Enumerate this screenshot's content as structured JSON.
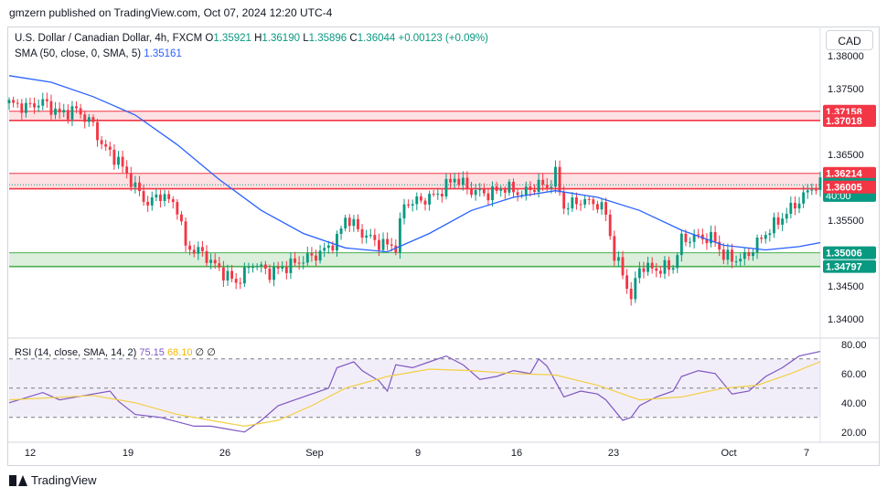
{
  "header": {
    "publisher": "gmzern published on TradingView.com, Oct 07, 2024 12:20 UTC-4"
  },
  "legend": {
    "symbol": "U.S. Dollar / Canadian Dollar, 4h, FXCM",
    "o_key": "O",
    "o_val": "1.35921",
    "h_key": "H",
    "h_val": "1.36190",
    "l_key": "L",
    "l_val": "1.35896",
    "c_key": "C",
    "c_val": "1.36044",
    "change": "+0.00123 (+0.09%)",
    "sma_label": "SMA (50, close, 0, SMA, 5)",
    "sma_value": "1.35161"
  },
  "currency_button": "CAD",
  "rsi_legend": {
    "label": "RSI (14, close, SMA, 14, 2)",
    "rsi_value": "75.15",
    "sma_value": "68.10",
    "v3": "∅",
    "v4": "∅"
  },
  "footer": {
    "brand": "TradingView"
  },
  "colors": {
    "up": "#089981",
    "down": "#f23645",
    "sma": "#2962ff",
    "rsi": "#7e57c2",
    "rsi_sma": "#f2cf45",
    "resistance": "#f23645",
    "support": "#4caf50",
    "text": "#131722"
  },
  "chart_data": [
    {
      "type": "candlestick",
      "title": "U.S. Dollar / Canadian Dollar, 4h, FXCM",
      "ylim": [
        1.3375,
        1.3835
      ],
      "y_ticks": [
        "1.38000",
        "1.37500",
        "1.37000",
        "1.36500",
        "1.36000",
        "1.35500",
        "1.35000",
        "1.34500",
        "1.34000"
      ],
      "x_ticks": [
        "12",
        "19",
        "26",
        "Sep",
        "9",
        "16",
        "23",
        "Oct",
        "7"
      ],
      "zones": [
        {
          "top": 1.37158,
          "bottom": 1.37018,
          "kind": "resistance"
        },
        {
          "top": 1.36214,
          "bottom": 1.3598,
          "kind": "resistance"
        },
        {
          "top": 1.35006,
          "bottom": 1.34797,
          "kind": "support"
        }
      ],
      "price_labels": [
        {
          "value": 1.37158,
          "text": "1.37158",
          "kind": "down"
        },
        {
          "value": 1.37018,
          "text": "1.37018",
          "kind": "down"
        },
        {
          "value": 1.36214,
          "text": "1.36214",
          "kind": "down"
        },
        {
          "value": 1.36044,
          "text": "1.36044",
          "sub": "40:00",
          "kind": "up"
        },
        {
          "value": 1.36005,
          "text": "1.36005",
          "kind": "down"
        },
        {
          "value": 1.35006,
          "text": "1.35006",
          "kind": "up"
        },
        {
          "value": 1.34797,
          "text": "1.34797",
          "kind": "up"
        }
      ],
      "close_path": [
        [
          0,
          1.3728
        ],
        [
          4,
          1.3722
        ],
        [
          8,
          1.373
        ],
        [
          12,
          1.3712
        ],
        [
          16,
          1.3718
        ],
        [
          20,
          1.3695
        ],
        [
          22,
          1.3665
        ],
        [
          26,
          1.364
        ],
        [
          30,
          1.36
        ],
        [
          33,
          1.3575
        ],
        [
          36,
          1.359
        ],
        [
          40,
          1.357
        ],
        [
          42,
          1.351
        ],
        [
          46,
          1.35
        ],
        [
          50,
          1.3475
        ],
        [
          54,
          1.3455
        ],
        [
          58,
          1.3485
        ],
        [
          62,
          1.347
        ],
        [
          66,
          1.348
        ],
        [
          70,
          1.349
        ],
        [
          74,
          1.35
        ],
        [
          78,
          1.352
        ],
        [
          80,
          1.3555
        ],
        [
          84,
          1.353
        ],
        [
          88,
          1.3515
        ],
        [
          92,
          1.351
        ],
        [
          94,
          1.3575
        ],
        [
          98,
          1.358
        ],
        [
          102,
          1.359
        ],
        [
          106,
          1.3615
        ],
        [
          110,
          1.3595
        ],
        [
          114,
          1.359
        ],
        [
          118,
          1.36
        ],
        [
          122,
          1.359
        ],
        [
          126,
          1.3605
        ],
        [
          128,
          1.36
        ],
        [
          130,
          1.362
        ],
        [
          132,
          1.357
        ],
        [
          136,
          1.358
        ],
        [
          140,
          1.3575
        ],
        [
          142,
          1.356
        ],
        [
          144,
          1.3495
        ],
        [
          146,
          1.347
        ],
        [
          148,
          1.343
        ],
        [
          150,
          1.348
        ],
        [
          154,
          1.3475
        ],
        [
          158,
          1.348
        ],
        [
          160,
          1.352
        ],
        [
          164,
          1.3525
        ],
        [
          168,
          1.352
        ],
        [
          170,
          1.3495
        ],
        [
          174,
          1.349
        ],
        [
          176,
          1.35
        ],
        [
          180,
          1.353
        ],
        [
          184,
          1.3555
        ],
        [
          188,
          1.358
        ],
        [
          191,
          1.36
        ],
        [
          193,
          1.3604
        ]
      ],
      "sma": {
        "name": "SMA (50, close, 0, SMA, 5)",
        "points": [
          [
            0,
            1.377
          ],
          [
            10,
            1.376
          ],
          [
            20,
            1.3738
          ],
          [
            30,
            1.371
          ],
          [
            40,
            1.3665
          ],
          [
            50,
            1.3612
          ],
          [
            60,
            1.3565
          ],
          [
            70,
            1.353
          ],
          [
            80,
            1.3508
          ],
          [
            90,
            1.3502
          ],
          [
            100,
            1.353
          ],
          [
            110,
            1.3565
          ],
          [
            120,
            1.3585
          ],
          [
            130,
            1.3595
          ],
          [
            140,
            1.3585
          ],
          [
            150,
            1.3565
          ],
          [
            160,
            1.3535
          ],
          [
            170,
            1.3512
          ],
          [
            180,
            1.3505
          ],
          [
            188,
            1.351
          ],
          [
            193,
            1.3516
          ]
        ]
      }
    },
    {
      "type": "line",
      "title": "RSI (14, close, SMA, 14, 2)",
      "ylim": [
        13,
        83
      ],
      "y_ticks": [
        "80.00",
        "60.00",
        "40.00",
        "20.00"
      ],
      "bands": [
        70,
        50,
        30
      ],
      "series": [
        {
          "name": "RSI",
          "points": [
            [
              0,
              40
            ],
            [
              8,
              47
            ],
            [
              12,
              42
            ],
            [
              18,
              45
            ],
            [
              24,
              48
            ],
            [
              26,
              41
            ],
            [
              30,
              32
            ],
            [
              36,
              30
            ],
            [
              40,
              27
            ],
            [
              44,
              24
            ],
            [
              48,
              24
            ],
            [
              52,
              22
            ],
            [
              56,
              20
            ],
            [
              60,
              28
            ],
            [
              64,
              38
            ],
            [
              68,
              42
            ],
            [
              72,
              46
            ],
            [
              76,
              50
            ],
            [
              78,
              64
            ],
            [
              82,
              68
            ],
            [
              84,
              62
            ],
            [
              88,
              55
            ],
            [
              90,
              48
            ],
            [
              92,
              66
            ],
            [
              96,
              64
            ],
            [
              100,
              68
            ],
            [
              104,
              72
            ],
            [
              108,
              66
            ],
            [
              112,
              56
            ],
            [
              116,
              58
            ],
            [
              120,
              62
            ],
            [
              124,
              60
            ],
            [
              126,
              70
            ],
            [
              128,
              65
            ],
            [
              132,
              44
            ],
            [
              136,
              48
            ],
            [
              140,
              46
            ],
            [
              142,
              42
            ],
            [
              146,
              28
            ],
            [
              148,
              30
            ],
            [
              150,
              38
            ],
            [
              154,
              44
            ],
            [
              158,
              48
            ],
            [
              160,
              58
            ],
            [
              164,
              62
            ],
            [
              168,
              60
            ],
            [
              172,
              46
            ],
            [
              176,
              48
            ],
            [
              180,
              58
            ],
            [
              184,
              64
            ],
            [
              188,
              72
            ],
            [
              193,
              75.15
            ]
          ]
        },
        {
          "name": "RSI SMA",
          "points": [
            [
              0,
              42
            ],
            [
              20,
              45
            ],
            [
              30,
              40
            ],
            [
              40,
              32
            ],
            [
              50,
              27
            ],
            [
              56,
              24
            ],
            [
              64,
              28
            ],
            [
              72,
              38
            ],
            [
              80,
              50
            ],
            [
              90,
              58
            ],
            [
              100,
              63
            ],
            [
              110,
              62
            ],
            [
              120,
              60
            ],
            [
              130,
              59
            ],
            [
              140,
              52
            ],
            [
              146,
              46
            ],
            [
              150,
              42
            ],
            [
              160,
              44
            ],
            [
              170,
              50
            ],
            [
              178,
              52
            ],
            [
              186,
              60
            ],
            [
              193,
              68.1
            ]
          ]
        }
      ]
    }
  ]
}
